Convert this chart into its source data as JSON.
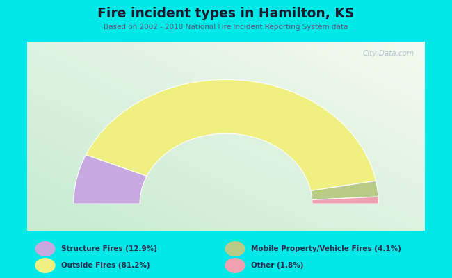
{
  "title": "Fire incident types in Hamilton, KS",
  "subtitle": "Based on 2002 - 2018 National Fire Incident Reporting System data",
  "categories": [
    "Structure Fires (12.9%)",
    "Outside Fires (81.2%)",
    "Mobile Property/Vehicle Fires (4.1%)",
    "Other (1.8%)"
  ],
  "values": [
    12.9,
    81.2,
    4.1,
    1.8
  ],
  "colors": [
    "#c8a8e0",
    "#f0f080",
    "#b8cc88",
    "#f0a0b0"
  ],
  "background_outer": "#00e8e8",
  "grad_tl": [
    0.78,
    0.92,
    0.82
  ],
  "grad_br": [
    0.96,
    0.98,
    0.94
  ],
  "title_color": "#1a1a2e",
  "subtitle_color": "#5a5a7a",
  "legend_text_color": "#2a2a4a",
  "watermark": "City-Data.com",
  "outer_r": 1.15,
  "inner_r": 0.65
}
